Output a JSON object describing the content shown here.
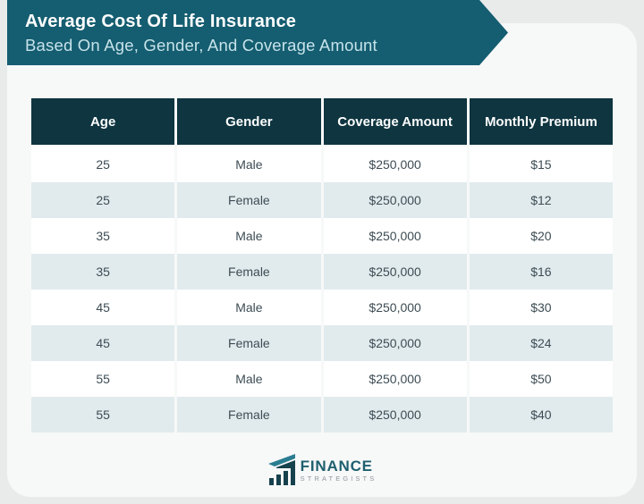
{
  "banner": {
    "title": "Average Cost Of Life Insurance",
    "subtitle": "Based On Age, Gender, And Coverage Amount"
  },
  "table": {
    "columns": [
      "Age",
      "Gender",
      "Coverage Amount",
      "Monthly Premium"
    ],
    "rows": [
      [
        "25",
        "Male",
        "$250,000",
        "$15"
      ],
      [
        "25",
        "Female",
        "$250,000",
        "$12"
      ],
      [
        "35",
        "Male",
        "$250,000",
        "$20"
      ],
      [
        "35",
        "Female",
        "$250,000",
        "$16"
      ],
      [
        "45",
        "Male",
        "$250,000",
        "$30"
      ],
      [
        "45",
        "Female",
        "$250,000",
        "$24"
      ],
      [
        "55",
        "Male",
        "$250,000",
        "$50"
      ],
      [
        "55",
        "Female",
        "$250,000",
        "$40"
      ]
    ]
  },
  "footer": {
    "brand_primary": "FINANCE",
    "brand_secondary": "STRATEGISTS"
  },
  "colors": {
    "banner_teal": "#155d70",
    "header_dark": "#0e3540",
    "row_alt": "#e1ebed",
    "row_text": "#3d4c54",
    "brand_teal": "#1e5f6e",
    "brand_gray": "#8e979c",
    "card_bg": "#f7f8f8",
    "page_bg": "#e9ebeb"
  }
}
